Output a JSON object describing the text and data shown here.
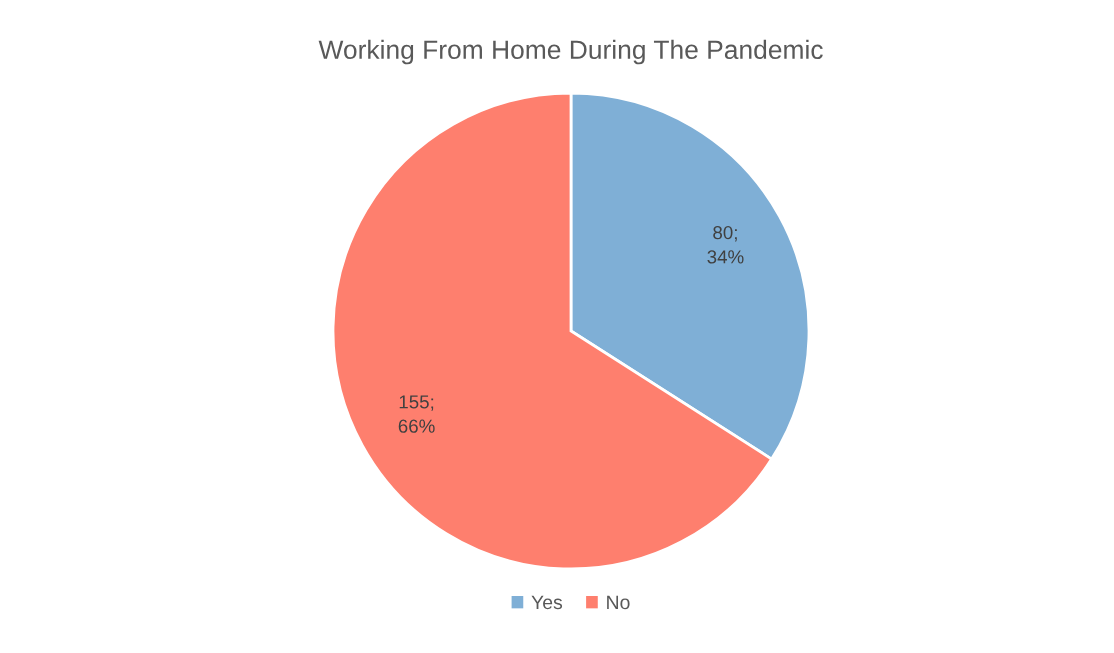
{
  "chart_data": {
    "type": "pie",
    "title": "Working From Home During The Pandemic",
    "categories": [
      "Yes",
      "No"
    ],
    "values": [
      80,
      155
    ],
    "colors": [
      "#7fafd6",
      "#fe7f6e"
    ],
    "value_labels": [
      "80;\n34%",
      "155;\n66%"
    ],
    "legend": "bottom"
  }
}
